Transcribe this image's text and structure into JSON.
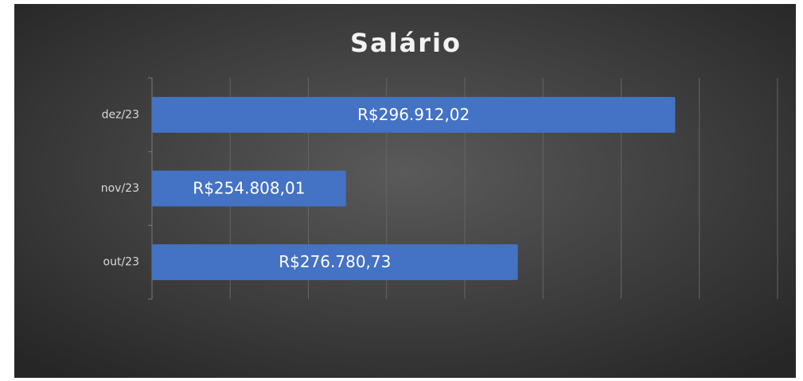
{
  "chart_data": {
    "type": "hbar",
    "title": "Salário",
    "categories": [
      "dez/23",
      "nov/23",
      "out/23"
    ],
    "values": [
      296912.02,
      254808.01,
      276780.73
    ],
    "value_labels": [
      "R$296.912,02",
      "R$254.808,01",
      "R$276.780,73"
    ],
    "color": "#4472c4",
    "xlim": [
      230000,
      310000
    ],
    "xticks": [
      230000,
      240000,
      250000,
      260000,
      270000,
      280000,
      290000,
      300000,
      310000
    ],
    "grid": true
  }
}
